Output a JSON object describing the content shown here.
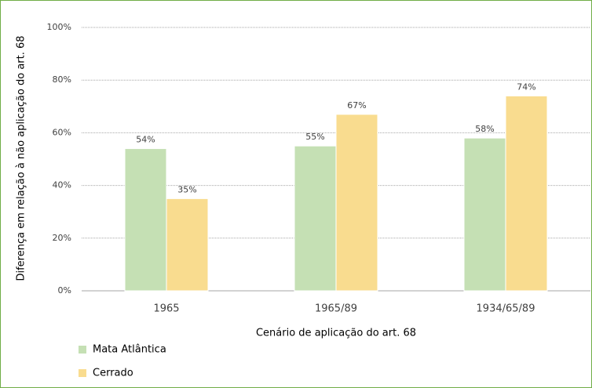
{
  "chart_data": {
    "type": "bar",
    "categories": [
      "1965",
      "1965/89",
      "1934/65/89"
    ],
    "series": [
      {
        "name": "Mata Atlântica",
        "color": "#c5e0b4",
        "values": [
          54,
          55,
          58
        ],
        "value_labels": [
          "54%",
          "55%",
          "58%"
        ]
      },
      {
        "name": "Cerrado",
        "color": "#f9dc8f",
        "values": [
          35,
          67,
          74
        ],
        "value_labels": [
          "35%",
          "67%",
          "74%"
        ]
      }
    ],
    "ylim": [
      0,
      100
    ],
    "yticks": [
      {
        "value": 0,
        "label": "0%"
      },
      {
        "value": 20,
        "label": "20%"
      },
      {
        "value": 40,
        "label": "40%"
      },
      {
        "value": 60,
        "label": "60%"
      },
      {
        "value": 80,
        "label": "80%"
      },
      {
        "value": 100,
        "label": "100%"
      }
    ],
    "ylabel": "Diferença em relação à não aplicação do art. 68",
    "xlabel": "Cenário de aplicação do art. 68",
    "grid": true,
    "legend": "bottom-left"
  }
}
